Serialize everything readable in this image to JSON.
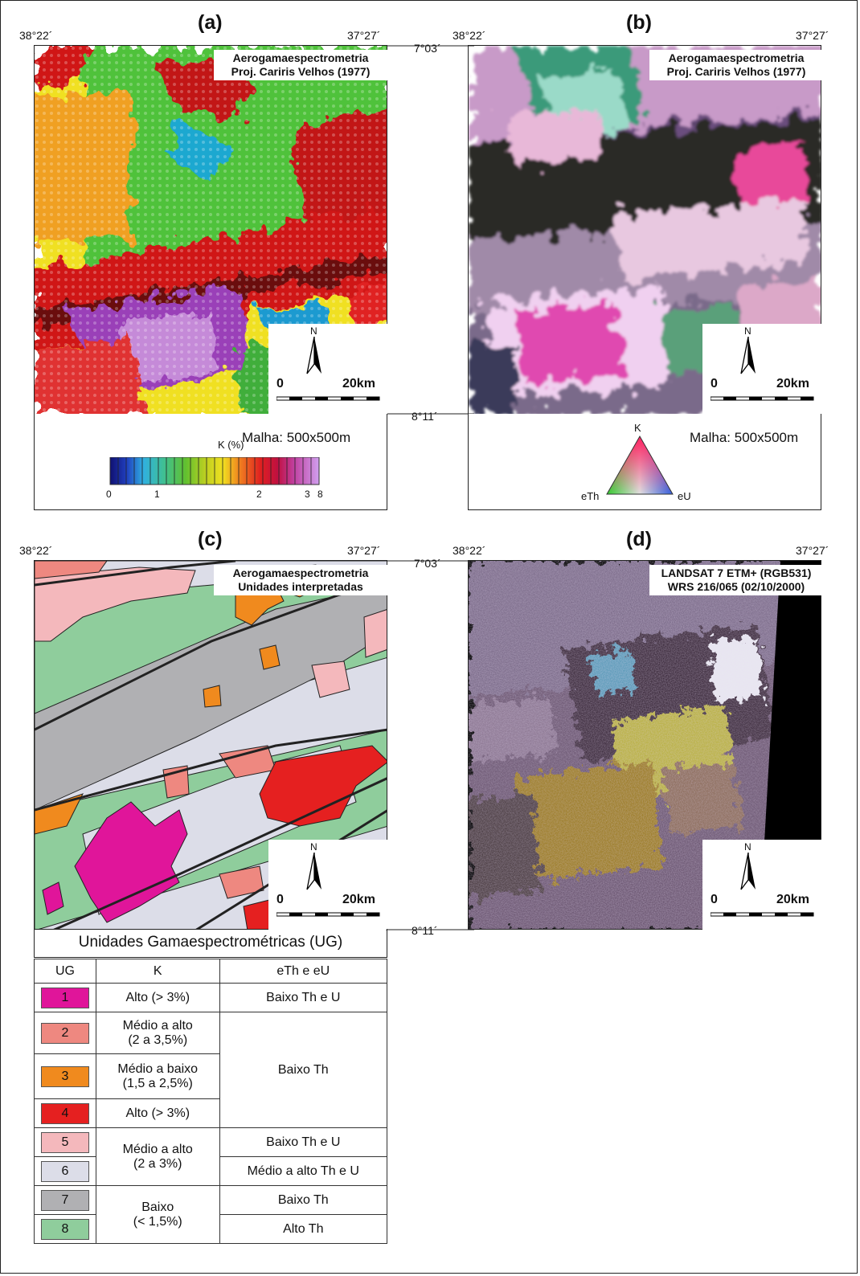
{
  "panels": {
    "a": {
      "label": "(a)",
      "title_line1": "Aerogamaespectrometria",
      "title_line2": "Proj. Cariris Velhos (1977)",
      "malha": "Malha: 500x500m",
      "legend_title": "K (%)",
      "ticks": [
        "0",
        "1",
        "2",
        "3",
        "8"
      ]
    },
    "b": {
      "label": "(b)",
      "title_line1": "Aerogamaespectrometria",
      "title_line2": "Proj. Cariris Velhos (1977)",
      "malha": "Malha: 500x500m",
      "tern_top": "K",
      "tern_left": "eTh",
      "tern_right": "eU"
    },
    "c": {
      "label": "(c)",
      "title_line1": "Aerogamaespectrometria",
      "title_line2": "Unidades interpretadas"
    },
    "d": {
      "label": "(d)",
      "title_line1": "LANDSAT 7 ETM+ (RGB531)",
      "title_line2": "WRS 216/065 (02/10/2000)"
    }
  },
  "coords": {
    "west": "38°22´",
    "east": "37°27´",
    "north": "7°03´",
    "south": "8°11´"
  },
  "scale": {
    "north": "N",
    "zero": "0",
    "dist": "20km"
  },
  "table": {
    "title": "Unidades Gamaespectrométricas (UG)",
    "h_ug": "UG",
    "h_k": "K",
    "h_th": "eTh e eU",
    "rows": [
      {
        "ug": "1",
        "color": "#e0159a"
      },
      {
        "ug": "2",
        "color": "#ee8880"
      },
      {
        "ug": "3",
        "color": "#f08a1e"
      },
      {
        "ug": "4",
        "color": "#e52020"
      },
      {
        "ug": "5",
        "color": "#f4b8bc"
      },
      {
        "ug": "6",
        "color": "#dcdde8"
      },
      {
        "ug": "7",
        "color": "#b0b0b3"
      },
      {
        "ug": "8",
        "color": "#8fcd9c"
      }
    ],
    "k1": "Alto (> 3%)",
    "k2a": "Médio a alto",
    "k2b": "(2 a 3,5%)",
    "k3a": "Médio a baixo",
    "k3b": "(1,5 a 2,5%)",
    "k4": "Alto (> 3%)",
    "k56a": "Médio a alto",
    "k56b": "(2 a 3%)",
    "k78a": "Baixo",
    "k78b": "(< 1,5%)",
    "t1": "Baixo Th e U",
    "t234": "Baixo Th",
    "t5": "Baixo Th e U",
    "t6": "Médio a alto Th e U",
    "t7": "Baixo Th",
    "t8": "Alto Th"
  }
}
